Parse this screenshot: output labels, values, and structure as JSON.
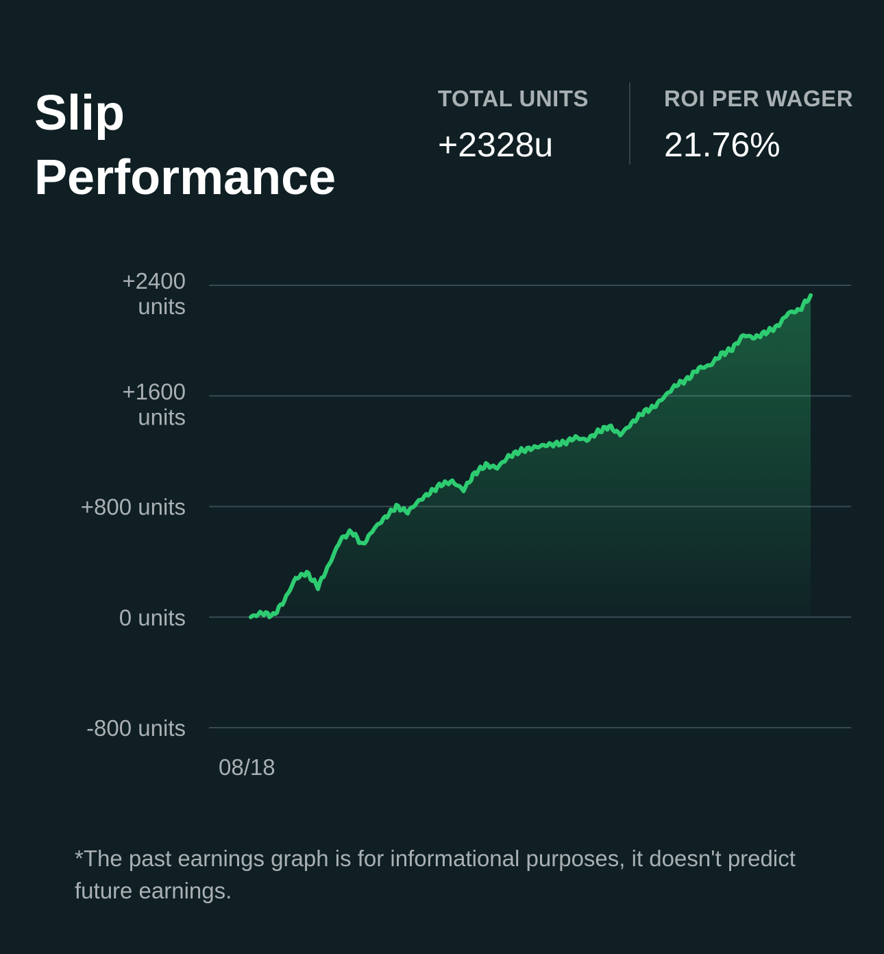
{
  "header": {
    "title": "Slip Performance",
    "stats": [
      {
        "label": "TOTAL UNITS",
        "value": "+2328u"
      },
      {
        "label": "ROI PER WAGER",
        "value": "21.76%"
      }
    ]
  },
  "colors": {
    "background": "#0f1f24",
    "line": "#2ecc71",
    "grid": "#3a4a55",
    "muted_text": "#a9b0b3"
  },
  "chart_data": {
    "type": "area",
    "ylim": [
      -800,
      2400
    ],
    "ytick_values": [
      2400,
      1600,
      800,
      0,
      -800
    ],
    "ytick_labels": [
      "+2400 units",
      "+1600 units",
      "+800 units",
      "0 units",
      "-800 units"
    ],
    "xtick_labels": [
      "08/18"
    ],
    "grid": true,
    "legend": "none",
    "series": [
      {
        "values": [
          0,
          30,
          10,
          120,
          280,
          320,
          220,
          380,
          560,
          620,
          520,
          640,
          720,
          800,
          760,
          840,
          900,
          960,
          980,
          920,
          1040,
          1100,
          1080,
          1160,
          1200,
          1220,
          1240,
          1250,
          1260,
          1300,
          1280,
          1340,
          1380,
          1320,
          1400,
          1480,
          1520,
          1600,
          1680,
          1720,
          1800,
          1820,
          1900,
          1940,
          2040,
          2020,
          2060,
          2100,
          2200,
          2220,
          2328
        ]
      }
    ]
  },
  "footer": {
    "disclaimer": "*The past earnings graph is for informational purposes, it doesn't predict future earnings."
  }
}
